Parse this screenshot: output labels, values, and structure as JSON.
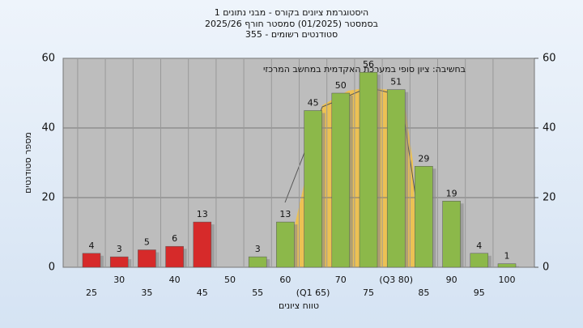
{
  "chart_data": {
    "type": "bar",
    "title": "היסטוגרמת ציונים בקורס - מבני נתונים 1",
    "subtitle": "בסמסטר  (01/2025)  סמסטר חורף 2025/26",
    "subtitle2": "סטודנטים רשומים - 355",
    "annotation": "בחשיבה: ציון סופי במערכת האקדמית במחשב המרכזי",
    "x_label": "טווח ציונים",
    "y_label": "מספר סטודנטים",
    "categories": [
      "25",
      "30",
      "35",
      "40",
      "45",
      "50",
      "55",
      "60",
      "(Q1 65)",
      "70",
      "75",
      "(Q3 80)",
      "85",
      "90",
      "95",
      "100"
    ],
    "values": [
      4,
      3,
      5,
      6,
      13,
      null,
      3,
      13,
      45,
      50,
      56,
      51,
      29,
      19,
      4,
      1
    ],
    "colors": [
      "#d62a2a",
      "#d62a2a",
      "#d62a2a",
      "#d62a2a",
      "#d62a2a",
      "#d62a2a",
      "#8cb84a",
      "#8cb84a",
      "#8cb84a",
      "#8cb84a",
      "#8cb84a",
      "#8cb84a",
      "#8cb84a",
      "#8cb84a",
      "#8cb84a",
      "#8cb84a"
    ],
    "ylim": [
      0,
      60
    ],
    "yticks": [
      0,
      20,
      40,
      60
    ],
    "y2lim": [
      0,
      60
    ],
    "y2ticks": [
      0,
      20,
      40,
      60
    ],
    "grid": true
  }
}
